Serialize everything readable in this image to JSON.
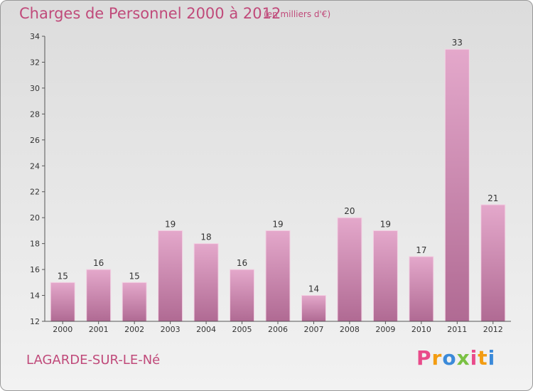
{
  "header": {
    "title": "Charges de Personnel 2000 à 2012",
    "subtitle": "(en milliers d'€)"
  },
  "footer": {
    "place": "LAGARDE-SUR-LE-Né",
    "logo_letters": [
      "P",
      "r",
      "o",
      "x",
      "i",
      "t",
      "i"
    ],
    "logo_colors": [
      "#e94b8a",
      "#f39c12",
      "#3b8ad9",
      "#7ac143",
      "#e94b8a",
      "#f39c12",
      "#3b8ad9"
    ]
  },
  "colors": {
    "bar_top": "#e4a8cb",
    "bar_bottom": "#b06a93",
    "axis": "#555555"
  },
  "chart_data": {
    "type": "bar",
    "categories": [
      "2000",
      "2001",
      "2002",
      "2003",
      "2004",
      "2005",
      "2006",
      "2007",
      "2008",
      "2009",
      "2010",
      "2011",
      "2012"
    ],
    "values": [
      15,
      16,
      15,
      19,
      18,
      16,
      19,
      14,
      20,
      19,
      17,
      33,
      21
    ],
    "title": "Charges de Personnel 2000 à 2012",
    "subtitle": "(en milliers d'€)",
    "xlabel": "",
    "ylabel": "",
    "ylim": [
      12,
      34
    ],
    "yticks": [
      12,
      14,
      16,
      18,
      20,
      22,
      24,
      26,
      28,
      30,
      32,
      34
    ],
    "grid": false,
    "legend": "none"
  }
}
